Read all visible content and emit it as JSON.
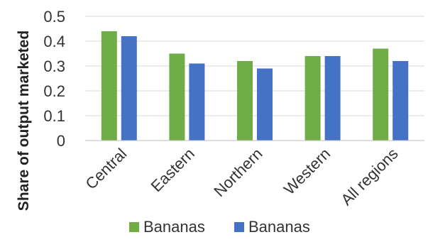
{
  "chart_data": {
    "type": "bar",
    "title": "",
    "xlabel": "",
    "ylabel": "Share of output marketed",
    "categories": [
      "Central",
      "Eastern",
      "Northern",
      "Western",
      "All regions"
    ],
    "series": [
      {
        "name": "Bananas",
        "values": [
          0.44,
          0.35,
          0.32,
          0.34,
          0.37
        ],
        "color": "#70AD47"
      },
      {
        "name": "Bananas",
        "values": [
          0.42,
          0.31,
          0.29,
          0.34,
          0.32
        ],
        "color": "#4472C4"
      }
    ],
    "ylim": [
      0,
      0.5
    ],
    "yticks": [
      "0",
      "0.1",
      "0.2",
      "0.3",
      "0.4",
      "0.5"
    ],
    "grid": true,
    "legend_position": "bottom"
  }
}
